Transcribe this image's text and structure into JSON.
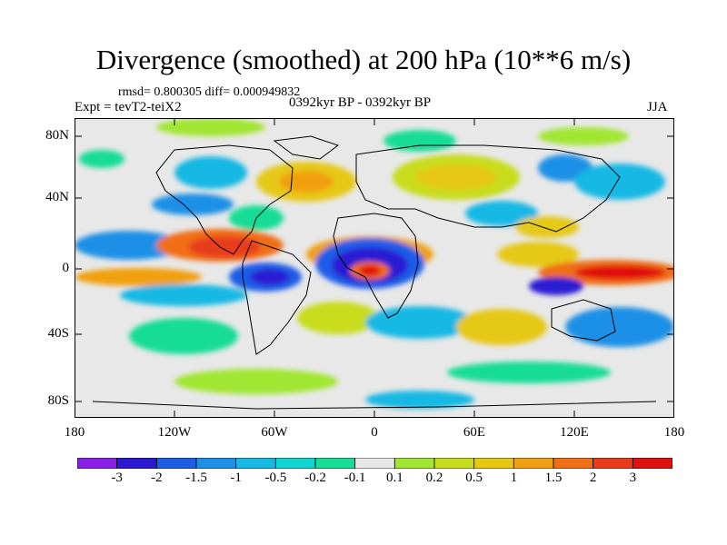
{
  "title": "Divergence (smoothed) at 200 hPa (10**6 m/s)",
  "stats": "rmsd= 0.800305 diff= 0.000949832",
  "experiment": "Expt = tevT2-teiX2",
  "period": "0392kyr BP - 0392kyr BP",
  "season": "JJA",
  "lat_ticks": [
    "80N",
    "40N",
    "0",
    "40S",
    "80S"
  ],
  "lon_ticks": [
    "180",
    "120W",
    "60W",
    "0",
    "60E",
    "120E",
    "180"
  ],
  "colorbar": {
    "labels": [
      "-3",
      "-2",
      "-1.5",
      "-1",
      "-0.5",
      "-0.2",
      "-0.1",
      "0.1",
      "0.2",
      "0.5",
      "1",
      "1.5",
      "2",
      "3"
    ],
    "colors": [
      "#8a20e8",
      "#2c1ad2",
      "#1e5de8",
      "#1e90e6",
      "#16b8e4",
      "#12d4d0",
      "#16dc96",
      "#e8e8e8",
      "#a0e632",
      "#c8dc1e",
      "#e6c814",
      "#f0a010",
      "#f06e14",
      "#e83c1c",
      "#e01010"
    ]
  }
}
